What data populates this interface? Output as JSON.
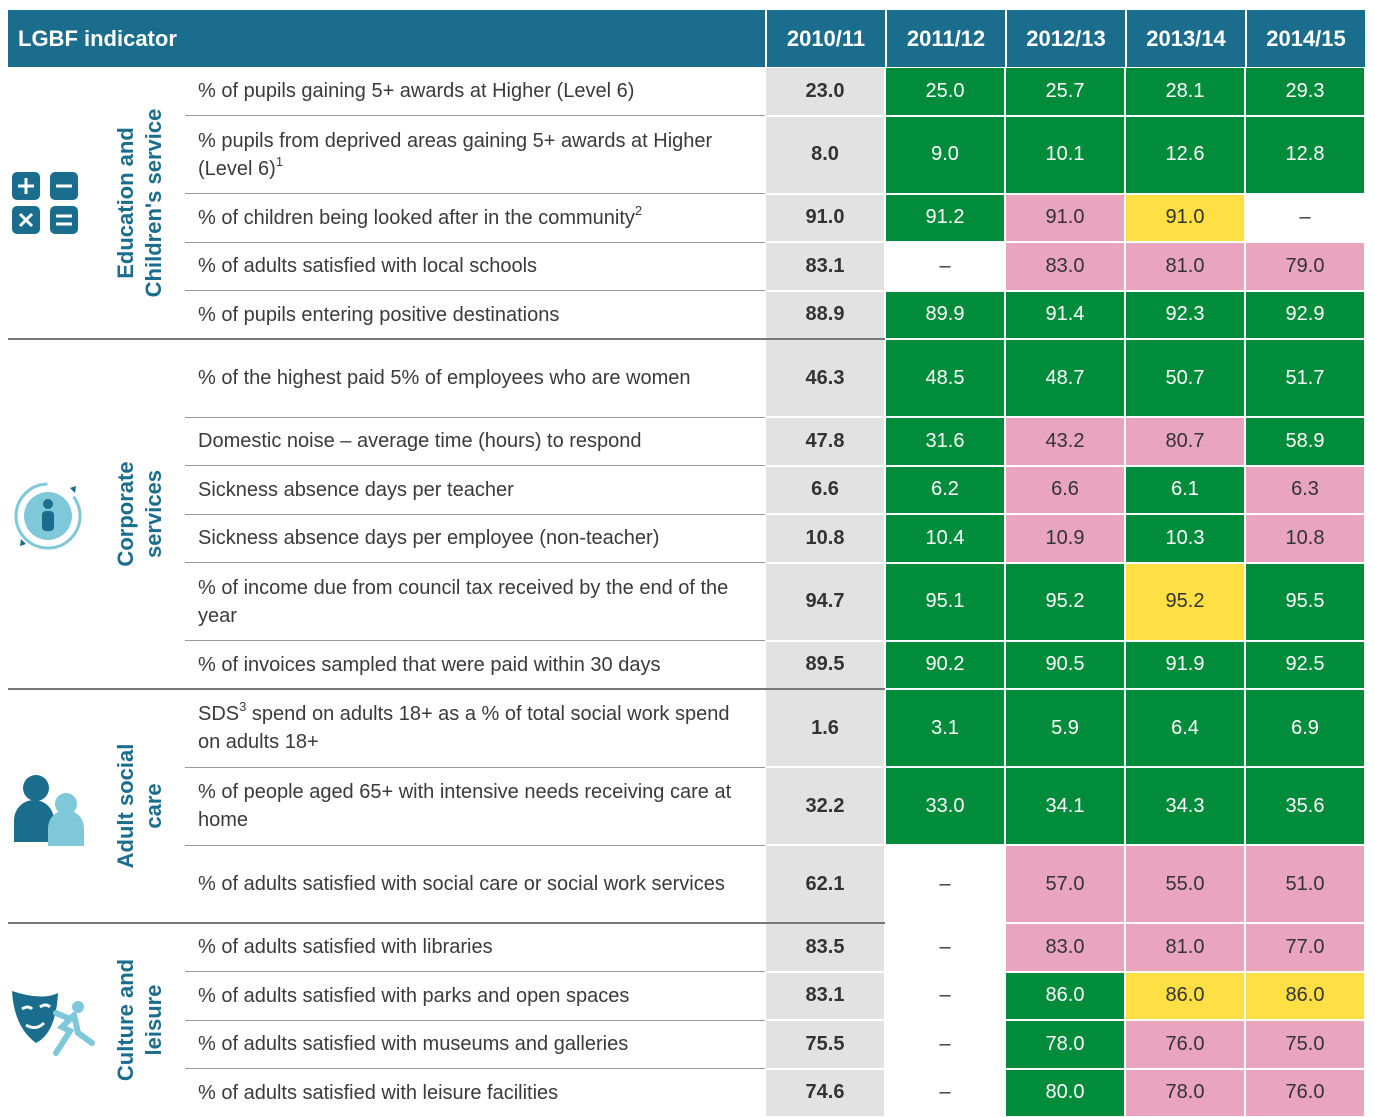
{
  "header": {
    "title": "LGBF indicator",
    "years": [
      "2010/11",
      "2011/12",
      "2012/13",
      "2013/14",
      "2014/15"
    ]
  },
  "groups": [
    {
      "label": [
        "Education and",
        "Children's service"
      ],
      "rows": [
        {
          "text": [
            {
              "t": "% of pupils gaining 5+ awards at Higher (Level 6)"
            }
          ],
          "values": [
            "23.0",
            "25.0",
            "25.7",
            "28.1",
            "29.3"
          ],
          "colors": [
            "#008c3a",
            "#008c3a",
            "#008c3a",
            "#008c3a"
          ]
        },
        {
          "text": [
            {
              "t": "% pupils from deprived areas gaining 5+ awards at Higher (Level 6)"
            },
            {
              "sup": "1"
            }
          ],
          "values": [
            "8.0",
            "9.0",
            "10.1",
            "12.6",
            "12.8"
          ],
          "colors": [
            "#008c3a",
            "#008c3a",
            "#008c3a",
            "#008c3a"
          ]
        },
        {
          "text": [
            {
              "t": "% of children being looked after in the community"
            },
            {
              "sup": "2"
            }
          ],
          "values": [
            "91.0",
            "91.2",
            "91.0",
            "91.0",
            "–"
          ],
          "colors": [
            "#008c3a",
            "#e8a5bd",
            "#fee044",
            "#ffffff"
          ]
        },
        {
          "text": [
            {
              "t": "% of adults satisfied with local schools"
            }
          ],
          "values": [
            "83.1",
            "–",
            "83.0",
            "81.0",
            "79.0"
          ],
          "colors": [
            "#ffffff",
            "#e8a5bd",
            "#e8a5bd",
            "#e8a5bd"
          ]
        },
        {
          "text": [
            {
              "t": "% of pupils entering positive destinations"
            }
          ],
          "values": [
            "88.9",
            "89.9",
            "91.4",
            "92.3",
            "92.9"
          ],
          "colors": [
            "#008c3a",
            "#008c3a",
            "#008c3a",
            "#008c3a"
          ]
        }
      ]
    },
    {
      "label": [
        "Corporate",
        "services"
      ],
      "rows": [
        {
          "text": [
            {
              "t": "% of the highest paid 5% of employees who are women"
            }
          ],
          "values": [
            "46.3",
            "48.5",
            "48.7",
            "50.7",
            "51.7"
          ],
          "colors": [
            "#008c3a",
            "#008c3a",
            "#008c3a",
            "#008c3a"
          ]
        },
        {
          "text": [
            {
              "t": "Domestic noise – average time (hours) to respond"
            }
          ],
          "values": [
            "47.8",
            "31.6",
            "43.2",
            "80.7",
            "58.9"
          ],
          "colors": [
            "#008c3a",
            "#e8a5bd",
            "#e8a5bd",
            "#008c3a"
          ]
        },
        {
          "text": [
            {
              "t": "Sickness absence days per teacher"
            }
          ],
          "values": [
            "6.6",
            "6.2",
            "6.6",
            "6.1",
            "6.3"
          ],
          "colors": [
            "#008c3a",
            "#e8a5bd",
            "#008c3a",
            "#e8a5bd"
          ]
        },
        {
          "text": [
            {
              "t": "Sickness absence days per employee (non-teacher)"
            }
          ],
          "values": [
            "10.8",
            "10.4",
            "10.9",
            "10.3",
            "10.8"
          ],
          "colors": [
            "#008c3a",
            "#e8a5bd",
            "#008c3a",
            "#e8a5bd"
          ]
        },
        {
          "text": [
            {
              "t": "% of income due from council tax received by the end of the year"
            }
          ],
          "values": [
            "94.7",
            "95.1",
            "95.2",
            "95.2",
            "95.5"
          ],
          "colors": [
            "#008c3a",
            "#008c3a",
            "#fee044",
            "#008c3a"
          ]
        },
        {
          "text": [
            {
              "t": "% of invoices sampled that were paid within 30 days"
            }
          ],
          "values": [
            "89.5",
            "90.2",
            "90.5",
            "91.9",
            "92.5"
          ],
          "colors": [
            "#008c3a",
            "#008c3a",
            "#008c3a",
            "#008c3a"
          ]
        }
      ]
    },
    {
      "label": [
        "Adult social",
        "care"
      ],
      "rows": [
        {
          "text": [
            {
              "t": "SDS"
            },
            {
              "sup": "3"
            },
            {
              "t": " spend on adults 18+ as a % of total social work spend on adults 18+"
            }
          ],
          "values": [
            "1.6",
            "3.1",
            "5.9",
            "6.4",
            "6.9"
          ],
          "colors": [
            "#008c3a",
            "#008c3a",
            "#008c3a",
            "#008c3a"
          ]
        },
        {
          "text": [
            {
              "t": "% of people aged 65+ with intensive needs receiving care at home"
            }
          ],
          "values": [
            "32.2",
            "33.0",
            "34.1",
            "34.3",
            "35.6"
          ],
          "colors": [
            "#008c3a",
            "#008c3a",
            "#008c3a",
            "#008c3a"
          ]
        },
        {
          "text": [
            {
              "t": "% of adults satisfied with social care or social work services"
            }
          ],
          "values": [
            "62.1",
            "–",
            "57.0",
            "55.0",
            "51.0"
          ],
          "colors": [
            "#ffffff",
            "#e8a5bd",
            "#e8a5bd",
            "#e8a5bd"
          ]
        }
      ]
    },
    {
      "label": [
        "Culture and",
        "leisure"
      ],
      "rows": [
        {
          "text": [
            {
              "t": "% of adults satisfied with libraries"
            }
          ],
          "values": [
            "83.5",
            "–",
            "83.0",
            "81.0",
            "77.0"
          ],
          "colors": [
            "#ffffff",
            "#e8a5bd",
            "#e8a5bd",
            "#e8a5bd"
          ]
        },
        {
          "text": [
            {
              "t": "% of adults satisfied with parks and open spaces"
            }
          ],
          "values": [
            "83.1",
            "–",
            "86.0",
            "86.0",
            "86.0"
          ],
          "colors": [
            "#ffffff",
            "#008c3a",
            "#fee044",
            "#fee044"
          ]
        },
        {
          "text": [
            {
              "t": "% of adults satisfied with museums and galleries"
            }
          ],
          "values": [
            "75.5",
            "–",
            "78.0",
            "76.0",
            "75.0"
          ],
          "colors": [
            "#ffffff",
            "#008c3a",
            "#e8a5bd",
            "#e8a5bd"
          ]
        },
        {
          "text": [
            {
              "t": "% of adults satisfied with leisure facilities"
            }
          ],
          "values": [
            "74.6",
            "–",
            "80.0",
            "78.0",
            "76.0"
          ],
          "colors": [
            "#ffffff",
            "#008c3a",
            "#e8a5bd",
            "#e8a5bd"
          ]
        }
      ]
    }
  ]
}
